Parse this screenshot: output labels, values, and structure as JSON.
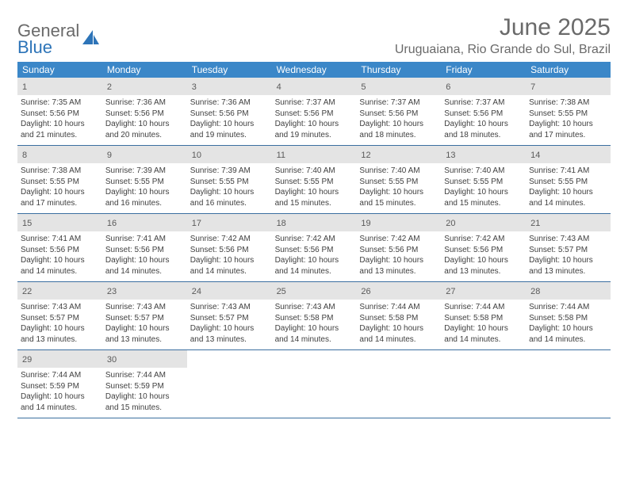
{
  "logo": {
    "line1": "General",
    "line2": "Blue"
  },
  "title": "June 2025",
  "location": "Uruguaiana, Rio Grande do Sul, Brazil",
  "colors": {
    "header_bg": "#3b87c8",
    "header_text": "#ffffff",
    "daynum_bg": "#e4e4e4",
    "body_text": "#404040",
    "title_text": "#6a6a6a",
    "week_border": "#3b6fa0",
    "logo_blue": "#2d74b8"
  },
  "day_names": [
    "Sunday",
    "Monday",
    "Tuesday",
    "Wednesday",
    "Thursday",
    "Friday",
    "Saturday"
  ],
  "days": [
    {
      "n": 1,
      "sunrise": "7:35 AM",
      "sunset": "5:56 PM",
      "daylight": "10 hours and 21 minutes."
    },
    {
      "n": 2,
      "sunrise": "7:36 AM",
      "sunset": "5:56 PM",
      "daylight": "10 hours and 20 minutes."
    },
    {
      "n": 3,
      "sunrise": "7:36 AM",
      "sunset": "5:56 PM",
      "daylight": "10 hours and 19 minutes."
    },
    {
      "n": 4,
      "sunrise": "7:37 AM",
      "sunset": "5:56 PM",
      "daylight": "10 hours and 19 minutes."
    },
    {
      "n": 5,
      "sunrise": "7:37 AM",
      "sunset": "5:56 PM",
      "daylight": "10 hours and 18 minutes."
    },
    {
      "n": 6,
      "sunrise": "7:37 AM",
      "sunset": "5:56 PM",
      "daylight": "10 hours and 18 minutes."
    },
    {
      "n": 7,
      "sunrise": "7:38 AM",
      "sunset": "5:55 PM",
      "daylight": "10 hours and 17 minutes."
    },
    {
      "n": 8,
      "sunrise": "7:38 AM",
      "sunset": "5:55 PM",
      "daylight": "10 hours and 17 minutes."
    },
    {
      "n": 9,
      "sunrise": "7:39 AM",
      "sunset": "5:55 PM",
      "daylight": "10 hours and 16 minutes."
    },
    {
      "n": 10,
      "sunrise": "7:39 AM",
      "sunset": "5:55 PM",
      "daylight": "10 hours and 16 minutes."
    },
    {
      "n": 11,
      "sunrise": "7:40 AM",
      "sunset": "5:55 PM",
      "daylight": "10 hours and 15 minutes."
    },
    {
      "n": 12,
      "sunrise": "7:40 AM",
      "sunset": "5:55 PM",
      "daylight": "10 hours and 15 minutes."
    },
    {
      "n": 13,
      "sunrise": "7:40 AM",
      "sunset": "5:55 PM",
      "daylight": "10 hours and 15 minutes."
    },
    {
      "n": 14,
      "sunrise": "7:41 AM",
      "sunset": "5:55 PM",
      "daylight": "10 hours and 14 minutes."
    },
    {
      "n": 15,
      "sunrise": "7:41 AM",
      "sunset": "5:56 PM",
      "daylight": "10 hours and 14 minutes."
    },
    {
      "n": 16,
      "sunrise": "7:41 AM",
      "sunset": "5:56 PM",
      "daylight": "10 hours and 14 minutes."
    },
    {
      "n": 17,
      "sunrise": "7:42 AM",
      "sunset": "5:56 PM",
      "daylight": "10 hours and 14 minutes."
    },
    {
      "n": 18,
      "sunrise": "7:42 AM",
      "sunset": "5:56 PM",
      "daylight": "10 hours and 14 minutes."
    },
    {
      "n": 19,
      "sunrise": "7:42 AM",
      "sunset": "5:56 PM",
      "daylight": "10 hours and 13 minutes."
    },
    {
      "n": 20,
      "sunrise": "7:42 AM",
      "sunset": "5:56 PM",
      "daylight": "10 hours and 13 minutes."
    },
    {
      "n": 21,
      "sunrise": "7:43 AM",
      "sunset": "5:57 PM",
      "daylight": "10 hours and 13 minutes."
    },
    {
      "n": 22,
      "sunrise": "7:43 AM",
      "sunset": "5:57 PM",
      "daylight": "10 hours and 13 minutes."
    },
    {
      "n": 23,
      "sunrise": "7:43 AM",
      "sunset": "5:57 PM",
      "daylight": "10 hours and 13 minutes."
    },
    {
      "n": 24,
      "sunrise": "7:43 AM",
      "sunset": "5:57 PM",
      "daylight": "10 hours and 13 minutes."
    },
    {
      "n": 25,
      "sunrise": "7:43 AM",
      "sunset": "5:58 PM",
      "daylight": "10 hours and 14 minutes."
    },
    {
      "n": 26,
      "sunrise": "7:44 AM",
      "sunset": "5:58 PM",
      "daylight": "10 hours and 14 minutes."
    },
    {
      "n": 27,
      "sunrise": "7:44 AM",
      "sunset": "5:58 PM",
      "daylight": "10 hours and 14 minutes."
    },
    {
      "n": 28,
      "sunrise": "7:44 AM",
      "sunset": "5:58 PM",
      "daylight": "10 hours and 14 minutes."
    },
    {
      "n": 29,
      "sunrise": "7:44 AM",
      "sunset": "5:59 PM",
      "daylight": "10 hours and 14 minutes."
    },
    {
      "n": 30,
      "sunrise": "7:44 AM",
      "sunset": "5:59 PM",
      "daylight": "10 hours and 15 minutes."
    }
  ],
  "labels": {
    "sunrise": "Sunrise: ",
    "sunset": "Sunset: ",
    "daylight": "Daylight: "
  },
  "layout": {
    "start_weekday": 0,
    "weeks": 5,
    "cols": 7
  }
}
